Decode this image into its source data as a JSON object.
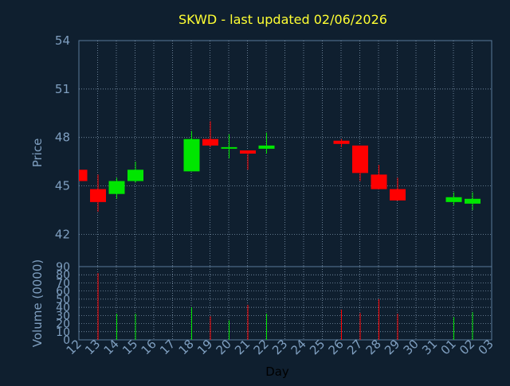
{
  "title": "SKWD - last updated 02/06/2026",
  "colors": {
    "background": "#0f1f2f",
    "title": "#ffff33",
    "axis_text": "#7f9fc0",
    "frame": "#5a7a9a",
    "grid": "#8fa7bf",
    "up": "#00e600",
    "down": "#ff0000",
    "axis_title": "#000000"
  },
  "chart_data": {
    "type": "candlestick",
    "title": "SKWD - last updated 02/06/2026",
    "ylabel": "Price",
    "ylim": [
      40,
      54
    ],
    "price_ticks": [
      "54",
      "51",
      "48",
      "45",
      "42"
    ],
    "xlabel": "Day",
    "volume_ylabel": "Volume (0000)",
    "volume_ylim": [
      0,
      90
    ],
    "volume_ticks": [
      "90",
      "80",
      "70",
      "60",
      "50",
      "40",
      "30",
      "20",
      "10",
      "0"
    ],
    "x_tick_labels": [
      "12",
      "13",
      "14",
      "15",
      "16",
      "17",
      "18",
      "19",
      "20",
      "21",
      "22",
      "23",
      "24",
      "25",
      "26",
      "27",
      "28",
      "29",
      "30",
      "31",
      "01",
      "02",
      "03"
    ],
    "grid": true,
    "candles": [
      {
        "x": "12",
        "open": 46.0,
        "close": 45.3,
        "high": 46.0,
        "low": 45.3,
        "volume": 0
      },
      {
        "x": "13",
        "open": 44.8,
        "close": 44.0,
        "high": 45.7,
        "low": 43.4,
        "volume": 82
      },
      {
        "x": "14",
        "open": 44.5,
        "close": 45.3,
        "high": 45.5,
        "low": 44.2,
        "volume": 32
      },
      {
        "x": "15",
        "open": 45.3,
        "close": 46.0,
        "high": 46.5,
        "low": 45.2,
        "volume": 32
      },
      {
        "x": "18",
        "open": 45.9,
        "close": 47.9,
        "high": 48.4,
        "low": 45.9,
        "volume": 40
      },
      {
        "x": "19",
        "open": 47.9,
        "close": 47.5,
        "high": 49.0,
        "low": 47.4,
        "volume": 29
      },
      {
        "x": "20",
        "open": 47.4,
        "close": 47.4,
        "high": 48.2,
        "low": 46.7,
        "volume": 24
      },
      {
        "x": "21",
        "open": 47.2,
        "close": 47.0,
        "high": 47.2,
        "low": 46.0,
        "volume": 43
      },
      {
        "x": "22",
        "open": 47.3,
        "close": 47.5,
        "high": 48.3,
        "low": 47.0,
        "volume": 32
      },
      {
        "x": "26",
        "open": 47.8,
        "close": 47.6,
        "high": 47.9,
        "low": 47.4,
        "volume": 37
      },
      {
        "x": "27",
        "open": 47.5,
        "close": 45.8,
        "high": 47.5,
        "low": 45.3,
        "volume": 33
      },
      {
        "x": "28",
        "open": 45.7,
        "close": 44.8,
        "high": 46.3,
        "low": 44.8,
        "volume": 50
      },
      {
        "x": "29",
        "open": 44.8,
        "close": 44.1,
        "high": 45.5,
        "low": 44.1,
        "volume": 32
      },
      {
        "x": "01",
        "open": 44.0,
        "close": 44.3,
        "high": 44.6,
        "low": 43.8,
        "volume": 28
      },
      {
        "x": "02",
        "open": 43.9,
        "close": 44.2,
        "high": 44.6,
        "low": 43.5,
        "volume": 34
      }
    ]
  }
}
